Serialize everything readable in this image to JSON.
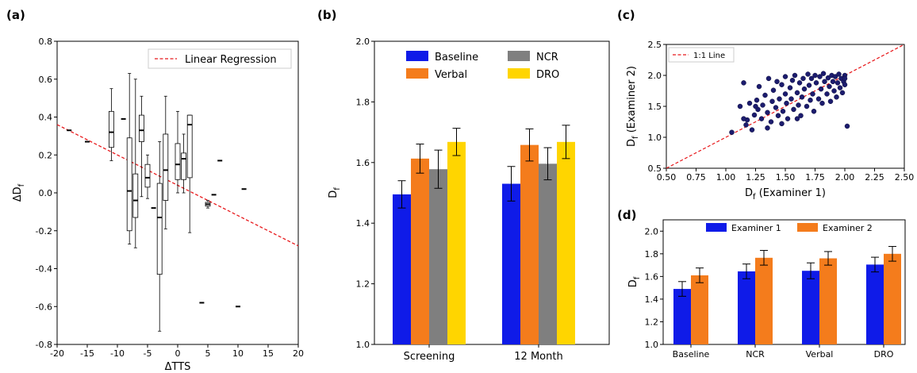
{
  "chart_data": [
    {
      "panel": "(a)",
      "type": "boxplot",
      "xlabel": "ΔTTS",
      "ylabel": "ΔD",
      "ylabel_sub": "f",
      "xlim": [
        -20,
        20
      ],
      "ylim": [
        -0.8,
        0.8
      ],
      "xticks": [
        -20,
        -15,
        -10,
        -5,
        0,
        5,
        10,
        15,
        20
      ],
      "yticks": [
        -0.8,
        -0.6,
        -0.4,
        -0.2,
        0.0,
        0.2,
        0.4,
        0.6,
        0.8
      ],
      "legend": [
        "Linear Regression"
      ],
      "regression": {
        "x": [
          -20,
          20
        ],
        "y": [
          0.36,
          -0.28
        ],
        "color": "#e8191c"
      },
      "boxes": [
        {
          "x": -18,
          "min": 0.33,
          "q1": 0.33,
          "median": 0.33,
          "q3": 0.33,
          "max": 0.33
        },
        {
          "x": -15,
          "min": 0.27,
          "q1": 0.27,
          "median": 0.27,
          "q3": 0.27,
          "max": 0.27
        },
        {
          "x": -11,
          "min": 0.17,
          "q1": 0.24,
          "median": 0.32,
          "q3": 0.43,
          "max": 0.55
        },
        {
          "x": -9,
          "min": 0.39,
          "q1": 0.39,
          "median": 0.39,
          "q3": 0.39,
          "max": 0.39
        },
        {
          "x": -8,
          "min": -0.27,
          "q1": -0.2,
          "median": 0.01,
          "q3": 0.29,
          "max": 0.63
        },
        {
          "x": -7,
          "min": -0.29,
          "q1": -0.13,
          "median": -0.04,
          "q3": 0.1,
          "max": 0.6
        },
        {
          "x": -6,
          "min": -0.02,
          "q1": 0.27,
          "median": 0.33,
          "q3": 0.41,
          "max": 0.51
        },
        {
          "x": -5,
          "min": -0.03,
          "q1": 0.03,
          "median": 0.08,
          "q3": 0.15,
          "max": 0.2
        },
        {
          "x": -4,
          "min": -0.08,
          "q1": -0.08,
          "median": -0.08,
          "q3": -0.08,
          "max": -0.08
        },
        {
          "x": -3,
          "min": -0.73,
          "q1": -0.43,
          "median": -0.13,
          "q3": 0.05,
          "max": 0.27
        },
        {
          "x": -2,
          "min": -0.19,
          "q1": -0.04,
          "median": 0.12,
          "q3": 0.31,
          "max": 0.51
        },
        {
          "x": 0,
          "min": 0.0,
          "q1": 0.07,
          "median": 0.15,
          "q3": 0.26,
          "max": 0.43
        },
        {
          "x": 1,
          "min": 0.0,
          "q1": 0.07,
          "median": 0.18,
          "q3": 0.21,
          "max": 0.31
        },
        {
          "x": 2,
          "min": -0.21,
          "q1": 0.08,
          "median": 0.36,
          "q3": 0.41,
          "max": 0.41
        },
        {
          "x": 4,
          "min": -0.58,
          "q1": -0.58,
          "median": -0.58,
          "q3": -0.58,
          "max": -0.58
        },
        {
          "x": 5,
          "min": -0.08,
          "q1": -0.07,
          "median": -0.06,
          "q3": -0.05,
          "max": -0.04
        },
        {
          "x": 6,
          "min": -0.01,
          "q1": -0.01,
          "median": -0.01,
          "q3": -0.01,
          "max": -0.01
        },
        {
          "x": 7,
          "min": 0.17,
          "q1": 0.17,
          "median": 0.17,
          "q3": 0.17,
          "max": 0.17
        },
        {
          "x": 10,
          "min": -0.6,
          "q1": -0.6,
          "median": -0.6,
          "q3": -0.6,
          "max": -0.6
        },
        {
          "x": 11,
          "min": 0.02,
          "q1": 0.02,
          "median": 0.02,
          "q3": 0.02,
          "max": 0.02
        }
      ]
    },
    {
      "panel": "(b)",
      "type": "bar",
      "ylabel": "D",
      "ylabel_sub": "f",
      "ylim": [
        1.0,
        2.0
      ],
      "yticks": [
        1.0,
        1.2,
        1.4,
        1.6,
        1.8,
        2.0
      ],
      "categories": [
        "Screening",
        "12 Month"
      ],
      "legend": [
        "Baseline",
        "NCR",
        "Verbal",
        "DRO"
      ],
      "series": [
        {
          "name": "Baseline",
          "color": "#0f1be8",
          "values": [
            1.495,
            1.53
          ],
          "errors": [
            0.045,
            0.057
          ]
        },
        {
          "name": "Verbal",
          "color": "#f47c1c",
          "values": [
            1.613,
            1.658
          ],
          "errors": [
            0.048,
            0.053
          ]
        },
        {
          "name": "NCR",
          "color": "#7f7f7f",
          "values": [
            1.578,
            1.596
          ],
          "errors": [
            0.063,
            0.053
          ]
        },
        {
          "name": "DRO",
          "color": "#ffd500",
          "values": [
            1.668,
            1.668
          ],
          "errors": [
            0.045,
            0.055
          ]
        }
      ]
    },
    {
      "panel": "(c)",
      "type": "scatter",
      "xlabel_prefix": "D",
      "xlabel_sub": "f",
      "xlabel_rest": " (Examiner 1)",
      "ylabel_prefix": "D",
      "ylabel_sub": "f",
      "ylabel_rest": " (Examiner 2)",
      "xlim": [
        0.5,
        2.5
      ],
      "ylim": [
        0.5,
        2.5
      ],
      "xticks": [
        0.5,
        0.75,
        1.0,
        1.25,
        1.5,
        1.75,
        2.0,
        2.25,
        2.5
      ],
      "yticks": [
        0.5,
        1.0,
        1.5,
        2.0,
        2.5
      ],
      "legend": [
        "1:1 Line"
      ],
      "point_color": "#1c1c6e",
      "line_color": "#e8191c",
      "points": [
        [
          1.05,
          1.08
        ],
        [
          1.12,
          1.5
        ],
        [
          1.15,
          1.88
        ],
        [
          1.17,
          1.2
        ],
        [
          1.18,
          1.28
        ],
        [
          1.2,
          1.55
        ],
        [
          1.22,
          1.12
        ],
        [
          1.24,
          1.36
        ],
        [
          1.26,
          1.6
        ],
        [
          1.27,
          1.45
        ],
        [
          1.28,
          1.82
        ],
        [
          1.3,
          1.3
        ],
        [
          1.31,
          1.52
        ],
        [
          1.33,
          1.68
        ],
        [
          1.35,
          1.4
        ],
        [
          1.36,
          1.95
        ],
        [
          1.38,
          1.25
        ],
        [
          1.39,
          1.58
        ],
        [
          1.4,
          1.76
        ],
        [
          1.42,
          1.48
        ],
        [
          1.43,
          1.9
        ],
        [
          1.44,
          1.35
        ],
        [
          1.45,
          1.62
        ],
        [
          1.47,
          1.85
        ],
        [
          1.48,
          1.42
        ],
        [
          1.5,
          1.7
        ],
        [
          1.5,
          1.98
        ],
        [
          1.51,
          1.55
        ],
        [
          1.52,
          1.3
        ],
        [
          1.54,
          1.8
        ],
        [
          1.55,
          1.62
        ],
        [
          1.56,
          1.92
        ],
        [
          1.57,
          1.45
        ],
        [
          1.58,
          2.0
        ],
        [
          1.6,
          1.72
        ],
        [
          1.61,
          1.52
        ],
        [
          1.62,
          1.88
        ],
        [
          1.63,
          1.35
        ],
        [
          1.64,
          1.65
        ],
        [
          1.65,
          1.95
        ],
        [
          1.66,
          1.78
        ],
        [
          1.68,
          1.5
        ],
        [
          1.69,
          2.02
        ],
        [
          1.7,
          1.84
        ],
        [
          1.71,
          1.6
        ],
        [
          1.72,
          1.95
        ],
        [
          1.73,
          1.7
        ],
        [
          1.74,
          1.42
        ],
        [
          1.75,
          2.0
        ],
        [
          1.76,
          1.88
        ],
        [
          1.78,
          1.62
        ],
        [
          1.79,
          1.98
        ],
        [
          1.8,
          1.78
        ],
        [
          1.81,
          1.55
        ],
        [
          1.82,
          2.03
        ],
        [
          1.83,
          1.9
        ],
        [
          1.85,
          1.7
        ],
        [
          1.86,
          1.96
        ],
        [
          1.87,
          1.82
        ],
        [
          1.88,
          1.58
        ],
        [
          1.89,
          2.0
        ],
        [
          1.9,
          1.9
        ],
        [
          1.91,
          1.75
        ],
        [
          1.92,
          1.98
        ],
        [
          1.93,
          1.65
        ],
        [
          1.94,
          1.88
        ],
        [
          1.95,
          2.02
        ],
        [
          1.96,
          1.8
        ],
        [
          1.97,
          1.95
        ],
        [
          1.98,
          1.72
        ],
        [
          1.99,
          1.9
        ],
        [
          2.0,
          2.0
        ],
        [
          2.0,
          1.85
        ],
        [
          2.0,
          1.95
        ],
        [
          2.02,
          1.18
        ],
        [
          1.6,
          1.3
        ],
        [
          1.47,
          1.22
        ],
        [
          1.35,
          1.15
        ],
        [
          1.25,
          1.5
        ],
        [
          1.15,
          1.3
        ]
      ]
    },
    {
      "panel": "(d)",
      "type": "bar",
      "ylabel": "D",
      "ylabel_sub": "f",
      "ylim": [
        1.0,
        2.1
      ],
      "yticks": [
        1.0,
        1.2,
        1.4,
        1.6,
        1.8,
        2.0
      ],
      "categories": [
        "Baseline",
        "NCR",
        "Verbal",
        "DRO"
      ],
      "legend": [
        "Examiner 1",
        "Examiner 2"
      ],
      "series": [
        {
          "name": "Examiner 1",
          "color": "#0f1be8",
          "values": [
            1.49,
            1.645,
            1.65,
            1.705
          ],
          "errors": [
            0.065,
            0.065,
            0.07,
            0.065
          ]
        },
        {
          "name": "Examiner 2",
          "color": "#f47c1c",
          "values": [
            1.61,
            1.765,
            1.76,
            1.8
          ],
          "errors": [
            0.065,
            0.065,
            0.06,
            0.065
          ]
        }
      ]
    }
  ]
}
